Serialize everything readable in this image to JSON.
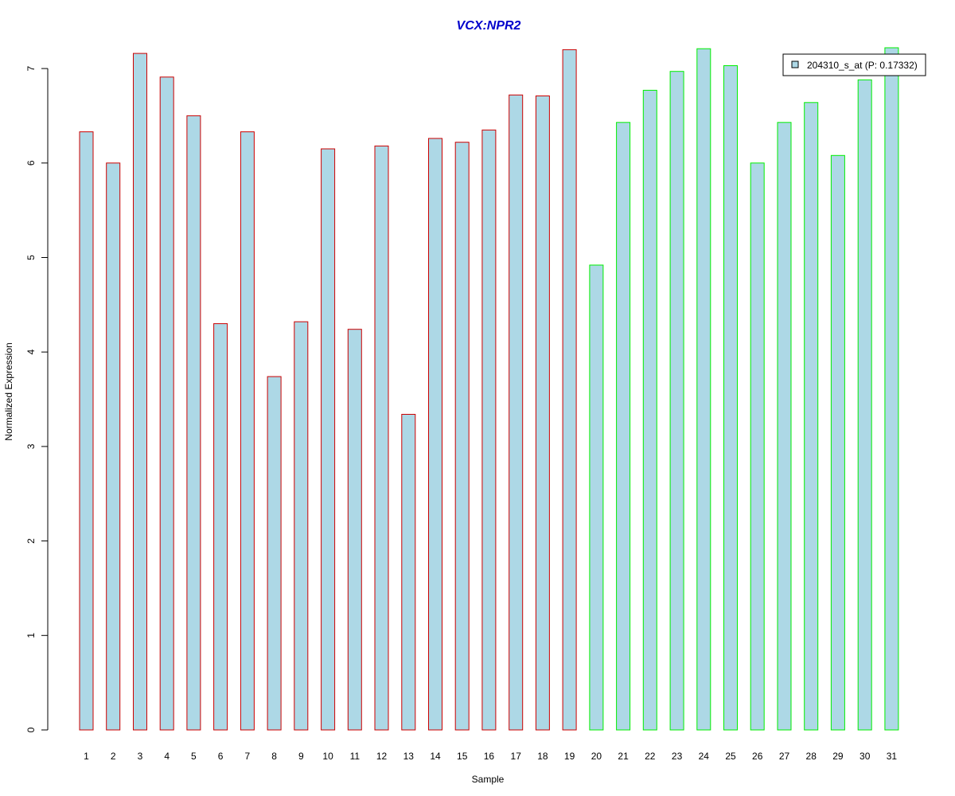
{
  "chart_data": {
    "type": "bar",
    "title": "VCX:NPR2",
    "title_color": "#0000cc",
    "xlabel": "Sample",
    "ylabel": "Normalized Expression",
    "ylim": [
      0,
      7.2
    ],
    "yticks": [
      0,
      1,
      2,
      3,
      4,
      5,
      6,
      7
    ],
    "grid": false,
    "legend_position": "top-right",
    "bar_fill": "#add8e6",
    "categories": [
      "1",
      "2",
      "3",
      "4",
      "5",
      "6",
      "7",
      "8",
      "9",
      "10",
      "11",
      "12",
      "13",
      "14",
      "15",
      "16",
      "17",
      "18",
      "19",
      "20",
      "21",
      "22",
      "23",
      "24",
      "25",
      "26",
      "27",
      "28",
      "29",
      "30",
      "31"
    ],
    "series": [
      {
        "name": "204310_s_at (P: 0.17332)",
        "values": [
          6.33,
          6.0,
          7.16,
          6.91,
          6.5,
          4.3,
          6.33,
          3.74,
          4.32,
          6.15,
          4.24,
          6.18,
          3.34,
          6.26,
          6.22,
          6.35,
          6.72,
          6.71,
          7.2,
          4.92,
          6.43,
          6.77,
          6.97,
          7.21,
          7.03,
          6.0,
          6.43,
          6.64,
          6.08,
          6.88,
          7.22
        ]
      }
    ],
    "groups": [
      {
        "border_color": "#cc0000",
        "from": 1,
        "to": 19
      },
      {
        "border_color": "#00ee00",
        "from": 20,
        "to": 31
      }
    ]
  }
}
